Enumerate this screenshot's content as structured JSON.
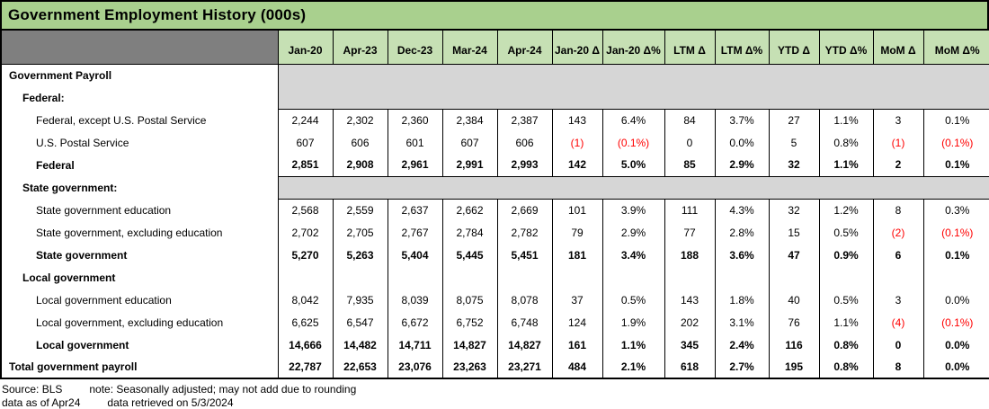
{
  "chart_data": {
    "type": "table",
    "title": "Government Employment History (000s)",
    "columns": [
      "Jan-20",
      "Apr-23",
      "Dec-23",
      "Mar-24",
      "Apr-24",
      "Jan-20 Δ",
      "Jan-20 Δ%",
      "LTM Δ",
      "LTM Δ%",
      "YTD Δ",
      "YTD Δ%",
      "MoM Δ",
      "MoM Δ%"
    ],
    "rows": [
      {
        "label": "Government Payroll",
        "bold": true,
        "indent": 1,
        "band": true,
        "band_rowspan": 2
      },
      {
        "label": "Federal:",
        "bold": true,
        "indent": 2,
        "band_continuation": true
      },
      {
        "label": "Federal, except U.S. Postal Service",
        "bold": false,
        "indent": 3,
        "values": [
          "2,244",
          "2,302",
          "2,360",
          "2,384",
          "2,387",
          "143",
          "6.4%",
          "84",
          "3.7%",
          "27",
          "1.1%",
          "3",
          "0.1%"
        ]
      },
      {
        "label": "U.S. Postal Service",
        "bold": false,
        "indent": 3,
        "values": [
          "607",
          "606",
          "601",
          "607",
          "606",
          "(1)",
          "(0.1%)",
          "0",
          "0.0%",
          "5",
          "0.8%",
          "(1)",
          "(0.1%)"
        ]
      },
      {
        "label": "Federal",
        "bold": true,
        "indent": 3,
        "values": [
          "2,851",
          "2,908",
          "2,961",
          "2,991",
          "2,993",
          "142",
          "5.0%",
          "85",
          "2.9%",
          "32",
          "1.1%",
          "2",
          "0.1%"
        ]
      },
      {
        "label": "State government:",
        "bold": true,
        "indent": 2,
        "band": true,
        "band_rowspan": 1
      },
      {
        "label": "State government education",
        "bold": false,
        "indent": 3,
        "values": [
          "2,568",
          "2,559",
          "2,637",
          "2,662",
          "2,669",
          "101",
          "3.9%",
          "111",
          "4.3%",
          "32",
          "1.2%",
          "8",
          "0.3%"
        ]
      },
      {
        "label": "State government, excluding education",
        "bold": false,
        "indent": 3,
        "values": [
          "2,702",
          "2,705",
          "2,767",
          "2,784",
          "2,782",
          "79",
          "2.9%",
          "77",
          "2.8%",
          "15",
          "0.5%",
          "(2)",
          "(0.1%)"
        ]
      },
      {
        "label": "State government",
        "bold": true,
        "indent": 3,
        "values": [
          "5,270",
          "5,263",
          "5,404",
          "5,445",
          "5,451",
          "181",
          "3.4%",
          "188",
          "3.6%",
          "47",
          "0.9%",
          "6",
          "0.1%"
        ]
      },
      {
        "label": "Local government",
        "bold": true,
        "indent": 2,
        "empty": true
      },
      {
        "label": "Local government education",
        "bold": false,
        "indent": 3,
        "values": [
          "8,042",
          "7,935",
          "8,039",
          "8,075",
          "8,078",
          "37",
          "0.5%",
          "143",
          "1.8%",
          "40",
          "0.5%",
          "3",
          "0.0%"
        ]
      },
      {
        "label": "Local government, excluding education",
        "bold": false,
        "indent": 3,
        "values": [
          "6,625",
          "6,547",
          "6,672",
          "6,752",
          "6,748",
          "124",
          "1.9%",
          "202",
          "3.1%",
          "76",
          "1.1%",
          "(4)",
          "(0.1%)"
        ]
      },
      {
        "label": "Local government",
        "bold": true,
        "indent": 3,
        "values": [
          "14,666",
          "14,482",
          "14,711",
          "14,827",
          "14,827",
          "161",
          "1.1%",
          "345",
          "2.4%",
          "116",
          "0.8%",
          "0",
          "0.0%"
        ]
      },
      {
        "label": "Total government payroll",
        "bold": true,
        "indent": 1,
        "values": [
          "22,787",
          "22,653",
          "23,076",
          "23,263",
          "23,271",
          "484",
          "2.1%",
          "618",
          "2.7%",
          "195",
          "0.8%",
          "8",
          "0.0%"
        ]
      }
    ],
    "legend_note": "negative values shown in parentheses and red"
  },
  "footer": {
    "source": "Source: BLS",
    "note": "note: Seasonally adjusted; may not add due to rounding",
    "as_of": "data as of Apr24",
    "retrieved": "data retrieved on 5/3/2024"
  },
  "colors": {
    "title_green": "#a9d08e",
    "header_green": "#c6e0b4",
    "corner_gray": "#7f7f7f",
    "band_gray": "#d6d6d6",
    "negative_red": "#ff0000"
  }
}
